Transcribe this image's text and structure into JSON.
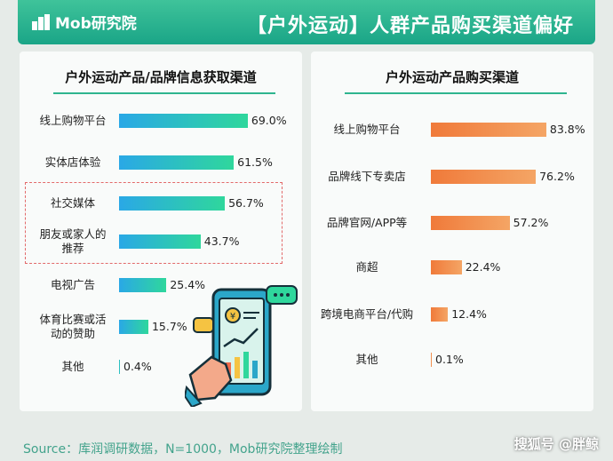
{
  "header": {
    "logo_text": "Mob研究院",
    "title": "【户外运动】人群产品购买渠道偏好"
  },
  "colors": {
    "header": "#1aa587",
    "left_bar_start": "#2aa8e6",
    "left_bar_end": "#2fd79c",
    "right_bar": "#f07a3a"
  },
  "chart_data": [
    {
      "type": "bar",
      "orientation": "horizontal",
      "title": "户外运动产品/品牌信息获取渠道",
      "categories": [
        "线上购物平台",
        "实体店体验",
        "社交媒体",
        "朋友或家人的推荐",
        "电视广告",
        "体育比赛或活动的赞助",
        "其他"
      ],
      "values": [
        69.0,
        61.5,
        56.7,
        43.7,
        25.4,
        15.7,
        0.4
      ],
      "value_labels": [
        "69.0%",
        "61.5%",
        "56.7%",
        "43.7%",
        "25.4%",
        "15.7%",
        "0.4%"
      ],
      "highlighted": [
        "社交媒体",
        "朋友或家人的推荐"
      ],
      "grid": false
    },
    {
      "type": "bar",
      "orientation": "horizontal",
      "title": "户外运动产品购买渠道",
      "categories": [
        "线上购物平台",
        "品牌线下专卖店",
        "品牌官网/APP等",
        "商超",
        "跨境电商平台/代购",
        "其他"
      ],
      "values": [
        83.8,
        76.2,
        57.2,
        22.4,
        12.4,
        0.1
      ],
      "value_labels": [
        "83.8%",
        "76.2%",
        "57.2%",
        "22.4%",
        "12.4%",
        "0.1%"
      ],
      "grid": false
    }
  ],
  "left_label_lines": [
    [
      "线上购物平台"
    ],
    [
      "实体店体验"
    ],
    [
      "社交媒体"
    ],
    [
      "朋友或家人的",
      "推荐"
    ],
    [
      "电视广告"
    ],
    [
      "体育比赛或活",
      "动的赞助"
    ],
    [
      "其他"
    ]
  ],
  "illustration": {
    "coin_symbol": "¥"
  },
  "footer": {
    "source": "Source：库润调研数据，N=1000，Mob研究院整理绘制",
    "watermark": "搜狐号 @胖鲸"
  }
}
